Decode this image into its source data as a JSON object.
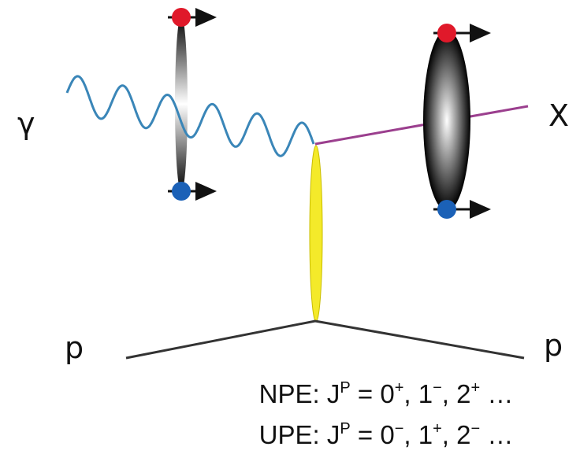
{
  "labels": {
    "photon": "γ",
    "final_state": "X",
    "proton_in": "p",
    "proton_out": "p"
  },
  "captions": [
    {
      "parts": [
        "NPE: J",
        "P",
        " = 0",
        "+",
        ", 1",
        "−",
        ", 2",
        "+",
        " …"
      ]
    },
    {
      "parts": [
        "UPE: J",
        "P",
        " = 0",
        "−",
        ", 1",
        "+",
        ", 2",
        "−",
        " …"
      ]
    }
  ]
}
